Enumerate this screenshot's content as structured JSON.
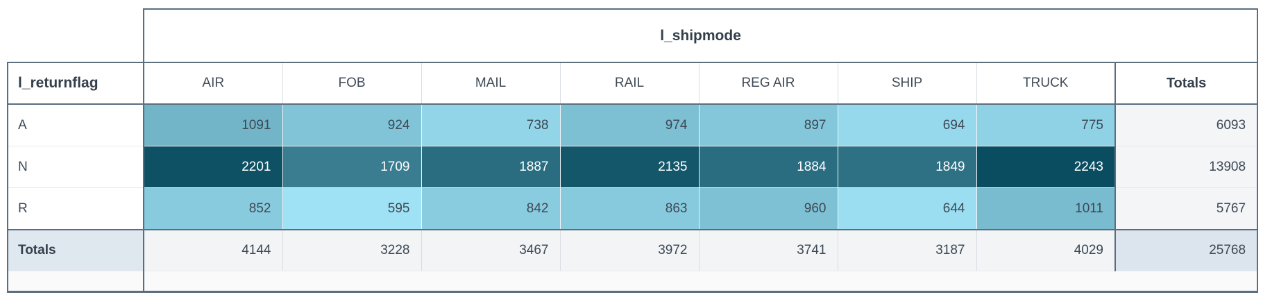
{
  "chart_data": {
    "type": "heatmap",
    "title": "l_shipmode",
    "row_dimension": "l_returnflag",
    "totals_label": "Totals",
    "columns": [
      "AIR",
      "FOB",
      "MAIL",
      "RAIL",
      "REG AIR",
      "SHIP",
      "TRUCK"
    ],
    "rows": [
      "A",
      "N",
      "R"
    ],
    "values": [
      [
        1091,
        924,
        738,
        974,
        897,
        694,
        775
      ],
      [
        2201,
        1709,
        1887,
        2135,
        1884,
        1849,
        2243
      ],
      [
        852,
        595,
        842,
        863,
        960,
        644,
        1011
      ]
    ],
    "row_totals": [
      6093,
      13908,
      5767
    ],
    "column_totals": [
      4144,
      3228,
      3467,
      3972,
      3741,
      3187,
      4029
    ],
    "grand_total": 25768,
    "color_scale": {
      "min_value": 595,
      "max_value": 2243,
      "min_color": "#9fe2f6",
      "max_color": "#0a4d61",
      "light_text_threshold": 0.55,
      "dark_text": "#3d4854",
      "light_text": "#ffffff"
    },
    "layout": {
      "grid": "on",
      "legend": "none"
    }
  }
}
